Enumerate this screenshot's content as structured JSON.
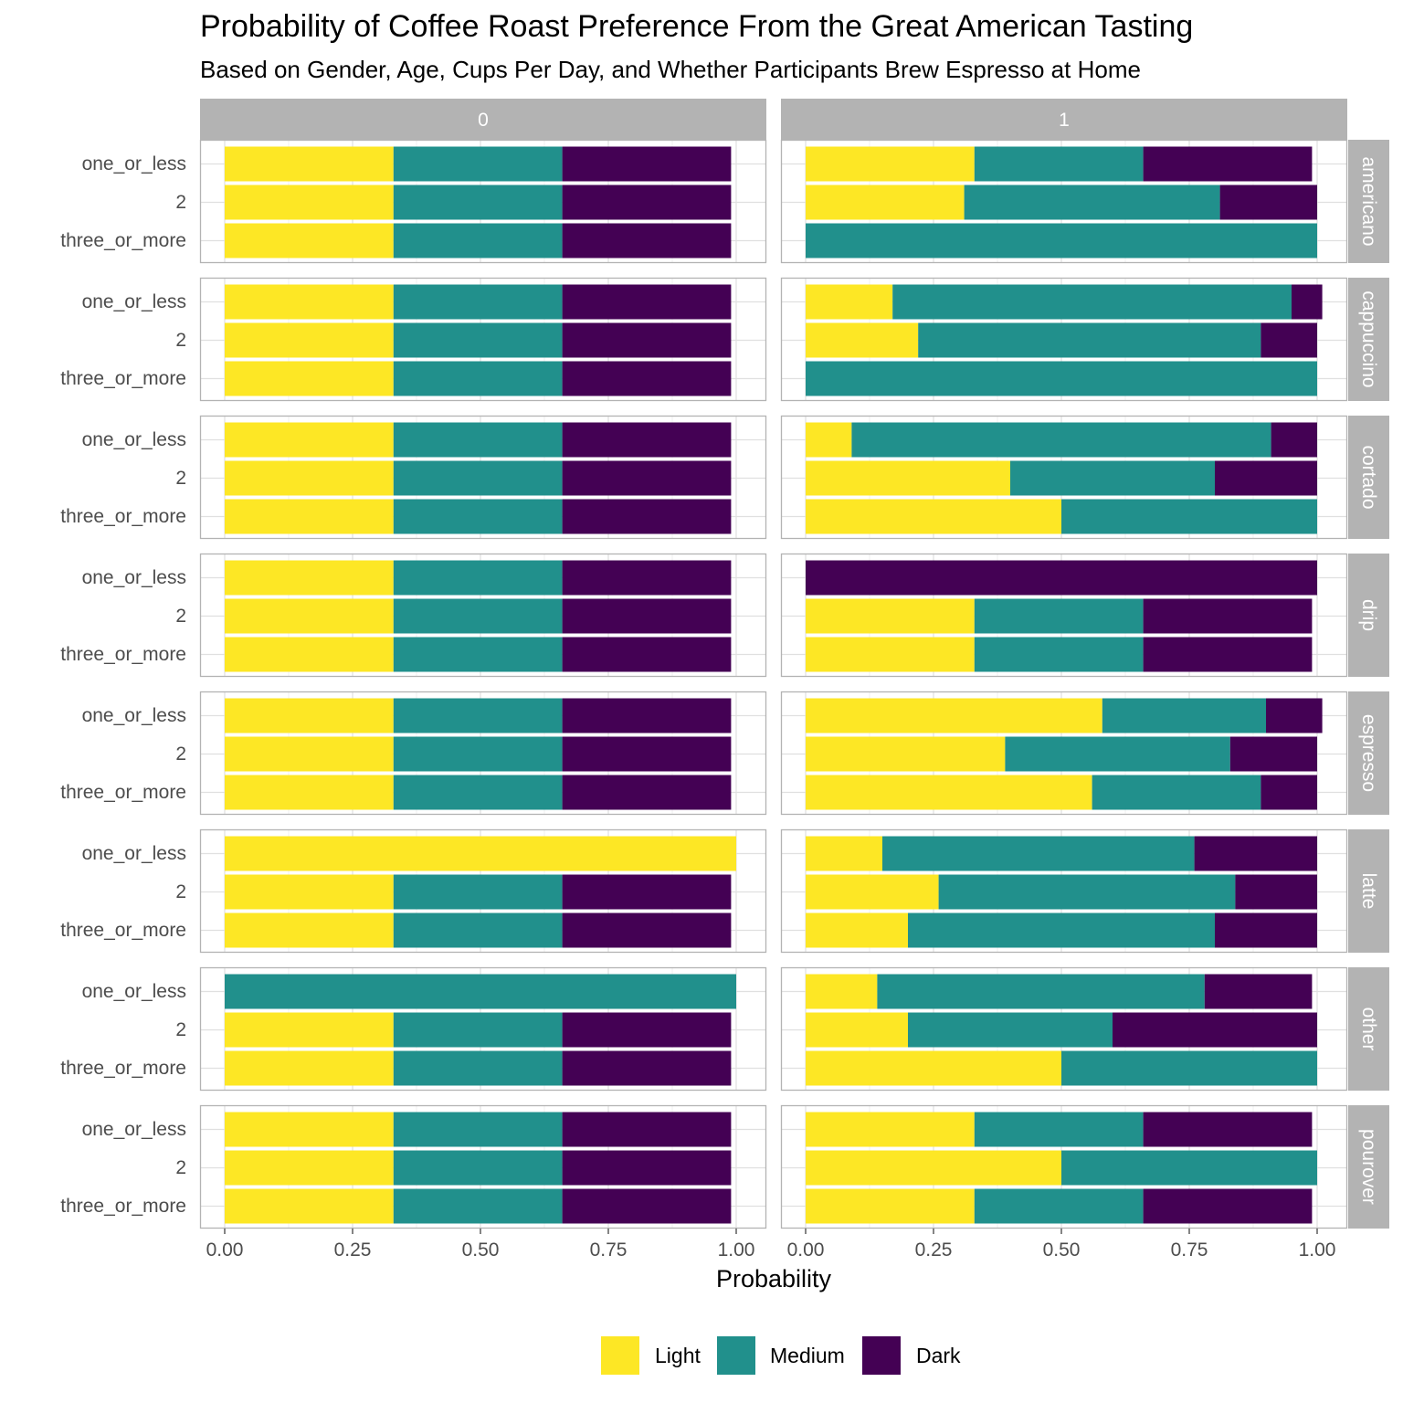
{
  "chart_data": {
    "type": "bar",
    "orientation": "horizontal",
    "stacked": true,
    "title": "Probability of Coffee Roast Preference From the Great American Tasting",
    "subtitle": "Based on Gender, Age, Cups Per Day, and Whether Participants Brew Espresso at Home",
    "xlabel": "Probability",
    "ylabel": "",
    "xlim": [
      0,
      1
    ],
    "x_ticks": [
      "0.00",
      "0.25",
      "0.50",
      "0.75",
      "1.00"
    ],
    "x_tick_values": [
      0,
      0.25,
      0.5,
      0.75,
      1
    ],
    "categories": [
      "one_or_less",
      "2",
      "three_or_more"
    ],
    "facet_columns": [
      "0",
      "1"
    ],
    "facet_rows": [
      "americano",
      "cappuccino",
      "cortado",
      "drip",
      "espresso",
      "latte",
      "other",
      "pourover"
    ],
    "series": [
      {
        "name": "Light",
        "color": "#FDE725"
      },
      {
        "name": "Medium",
        "color": "#21908C"
      },
      {
        "name": "Dark",
        "color": "#440154"
      }
    ],
    "legend_position": "bottom",
    "grid": true,
    "values": {
      "0": {
        "americano": [
          [
            0.33,
            0.33,
            0.33
          ],
          [
            0.33,
            0.33,
            0.33
          ],
          [
            0.33,
            0.33,
            0.33
          ]
        ],
        "cappuccino": [
          [
            0.33,
            0.33,
            0.33
          ],
          [
            0.33,
            0.33,
            0.33
          ],
          [
            0.33,
            0.33,
            0.33
          ]
        ],
        "cortado": [
          [
            0.33,
            0.33,
            0.33
          ],
          [
            0.33,
            0.33,
            0.33
          ],
          [
            0.33,
            0.33,
            0.33
          ]
        ],
        "drip": [
          [
            0.33,
            0.33,
            0.33
          ],
          [
            0.33,
            0.33,
            0.33
          ],
          [
            0.33,
            0.33,
            0.33
          ]
        ],
        "espresso": [
          [
            0.33,
            0.33,
            0.33
          ],
          [
            0.33,
            0.33,
            0.33
          ],
          [
            0.33,
            0.33,
            0.33
          ]
        ],
        "latte": [
          [
            1.0,
            0,
            0
          ],
          [
            0.33,
            0.33,
            0.33
          ],
          [
            0.33,
            0.33,
            0.33
          ]
        ],
        "other": [
          [
            0,
            1.0,
            0
          ],
          [
            0.33,
            0.33,
            0.33
          ],
          [
            0.33,
            0.33,
            0.33
          ]
        ],
        "pourover": [
          [
            0.33,
            0.33,
            0.33
          ],
          [
            0.33,
            0.33,
            0.33
          ],
          [
            0.33,
            0.33,
            0.33
          ]
        ]
      },
      "1": {
        "americano": [
          [
            0.33,
            0.33,
            0.33
          ],
          [
            0.31,
            0.5,
            0.19
          ],
          [
            0,
            1.0,
            0
          ]
        ],
        "cappuccino": [
          [
            0.17,
            0.78,
            0.06
          ],
          [
            0.22,
            0.67,
            0.11
          ],
          [
            0,
            1.0,
            0
          ]
        ],
        "cortado": [
          [
            0.09,
            0.82,
            0.09
          ],
          [
            0.4,
            0.4,
            0.2
          ],
          [
            0.5,
            0.5,
            0
          ]
        ],
        "drip": [
          [
            0,
            0,
            1.0
          ],
          [
            0.33,
            0.33,
            0.33
          ],
          [
            0.33,
            0.33,
            0.33
          ]
        ],
        "espresso": [
          [
            0.58,
            0.32,
            0.11
          ],
          [
            0.39,
            0.44,
            0.17
          ],
          [
            0.56,
            0.33,
            0.11
          ]
        ],
        "latte": [
          [
            0.15,
            0.61,
            0.24
          ],
          [
            0.26,
            0.58,
            0.16
          ],
          [
            0.2,
            0.6,
            0.2
          ]
        ],
        "other": [
          [
            0.14,
            0.64,
            0.21
          ],
          [
            0.2,
            0.4,
            0.4
          ],
          [
            0.5,
            0.5,
            0
          ]
        ],
        "pourover": [
          [
            0.33,
            0.33,
            0.33
          ],
          [
            0.5,
            0.5,
            0
          ],
          [
            0.33,
            0.33,
            0.33
          ]
        ]
      }
    }
  },
  "colors": {
    "strip_background": "#B3B3B3",
    "panel_border": "#B3B3B3",
    "grid_major": "#E0E0E0",
    "grid_minor": "#F0F0F0",
    "axis_text": "#4d4d4d"
  }
}
